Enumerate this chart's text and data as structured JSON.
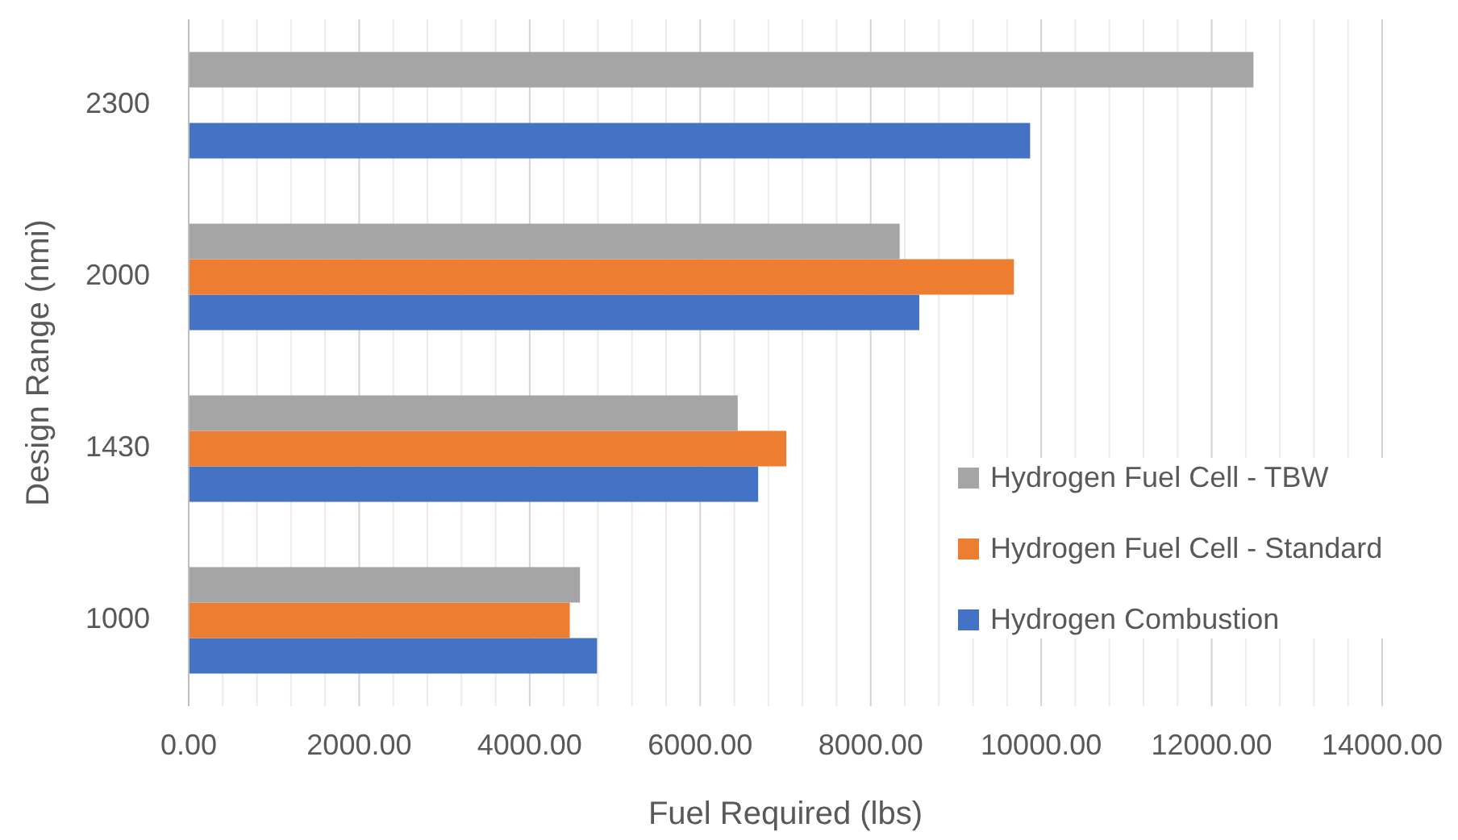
{
  "chart_data": {
    "type": "bar",
    "orientation": "horizontal",
    "xlabel": "Fuel Required (lbs)",
    "ylabel": "Design Range (nmi)",
    "categories": [
      "2300",
      "2000",
      "1430",
      "1000"
    ],
    "series": [
      {
        "name": "Hydrogen Combustion",
        "color": "#4472c4",
        "values": [
          9870,
          8570,
          6680,
          4790
        ]
      },
      {
        "name": "Hydrogen Fuel Cell - Standard",
        "color": "#ed7d31",
        "values": [
          null,
          9680,
          7010,
          4470
        ]
      },
      {
        "name": "Hydrogen Fuel Cell - TBW",
        "color": "#a5a5a5",
        "values": [
          12490,
          8340,
          6440,
          4590
        ]
      }
    ],
    "xlim": [
      0,
      14000
    ],
    "xticks": [
      {
        "value": 0,
        "label": "0.00"
      },
      {
        "value": 400,
        "label": null
      },
      {
        "value": 800,
        "label": null
      },
      {
        "value": 1200,
        "label": null
      },
      {
        "value": 1600,
        "label": null
      },
      {
        "value": 2000,
        "label": "2000.00"
      },
      {
        "value": 2400,
        "label": null
      },
      {
        "value": 2800,
        "label": null
      },
      {
        "value": 3200,
        "label": null
      },
      {
        "value": 3600,
        "label": null
      },
      {
        "value": 4000,
        "label": "4000.00"
      },
      {
        "value": 4400,
        "label": null
      },
      {
        "value": 4800,
        "label": null
      },
      {
        "value": 5200,
        "label": null
      },
      {
        "value": 5600,
        "label": null
      },
      {
        "value": 6000,
        "label": "6000.00"
      },
      {
        "value": 6400,
        "label": null
      },
      {
        "value": 6800,
        "label": null
      },
      {
        "value": 7200,
        "label": null
      },
      {
        "value": 7600,
        "label": null
      },
      {
        "value": 8000,
        "label": "8000.00"
      },
      {
        "value": 8400,
        "label": null
      },
      {
        "value": 8800,
        "label": null
      },
      {
        "value": 9200,
        "label": null
      },
      {
        "value": 9600,
        "label": null
      },
      {
        "value": 10000,
        "label": "10000.00"
      },
      {
        "value": 10400,
        "label": null
      },
      {
        "value": 10800,
        "label": null
      },
      {
        "value": 11200,
        "label": null
      },
      {
        "value": 11600,
        "label": null
      },
      {
        "value": 12000,
        "label": "12000.00"
      },
      {
        "value": 12400,
        "label": null
      },
      {
        "value": 12800,
        "label": null
      },
      {
        "value": 13200,
        "label": null
      },
      {
        "value": 13600,
        "label": null
      },
      {
        "value": 14000,
        "label": "14000.00"
      }
    ],
    "grid": true,
    "legend": "bottom right"
  }
}
